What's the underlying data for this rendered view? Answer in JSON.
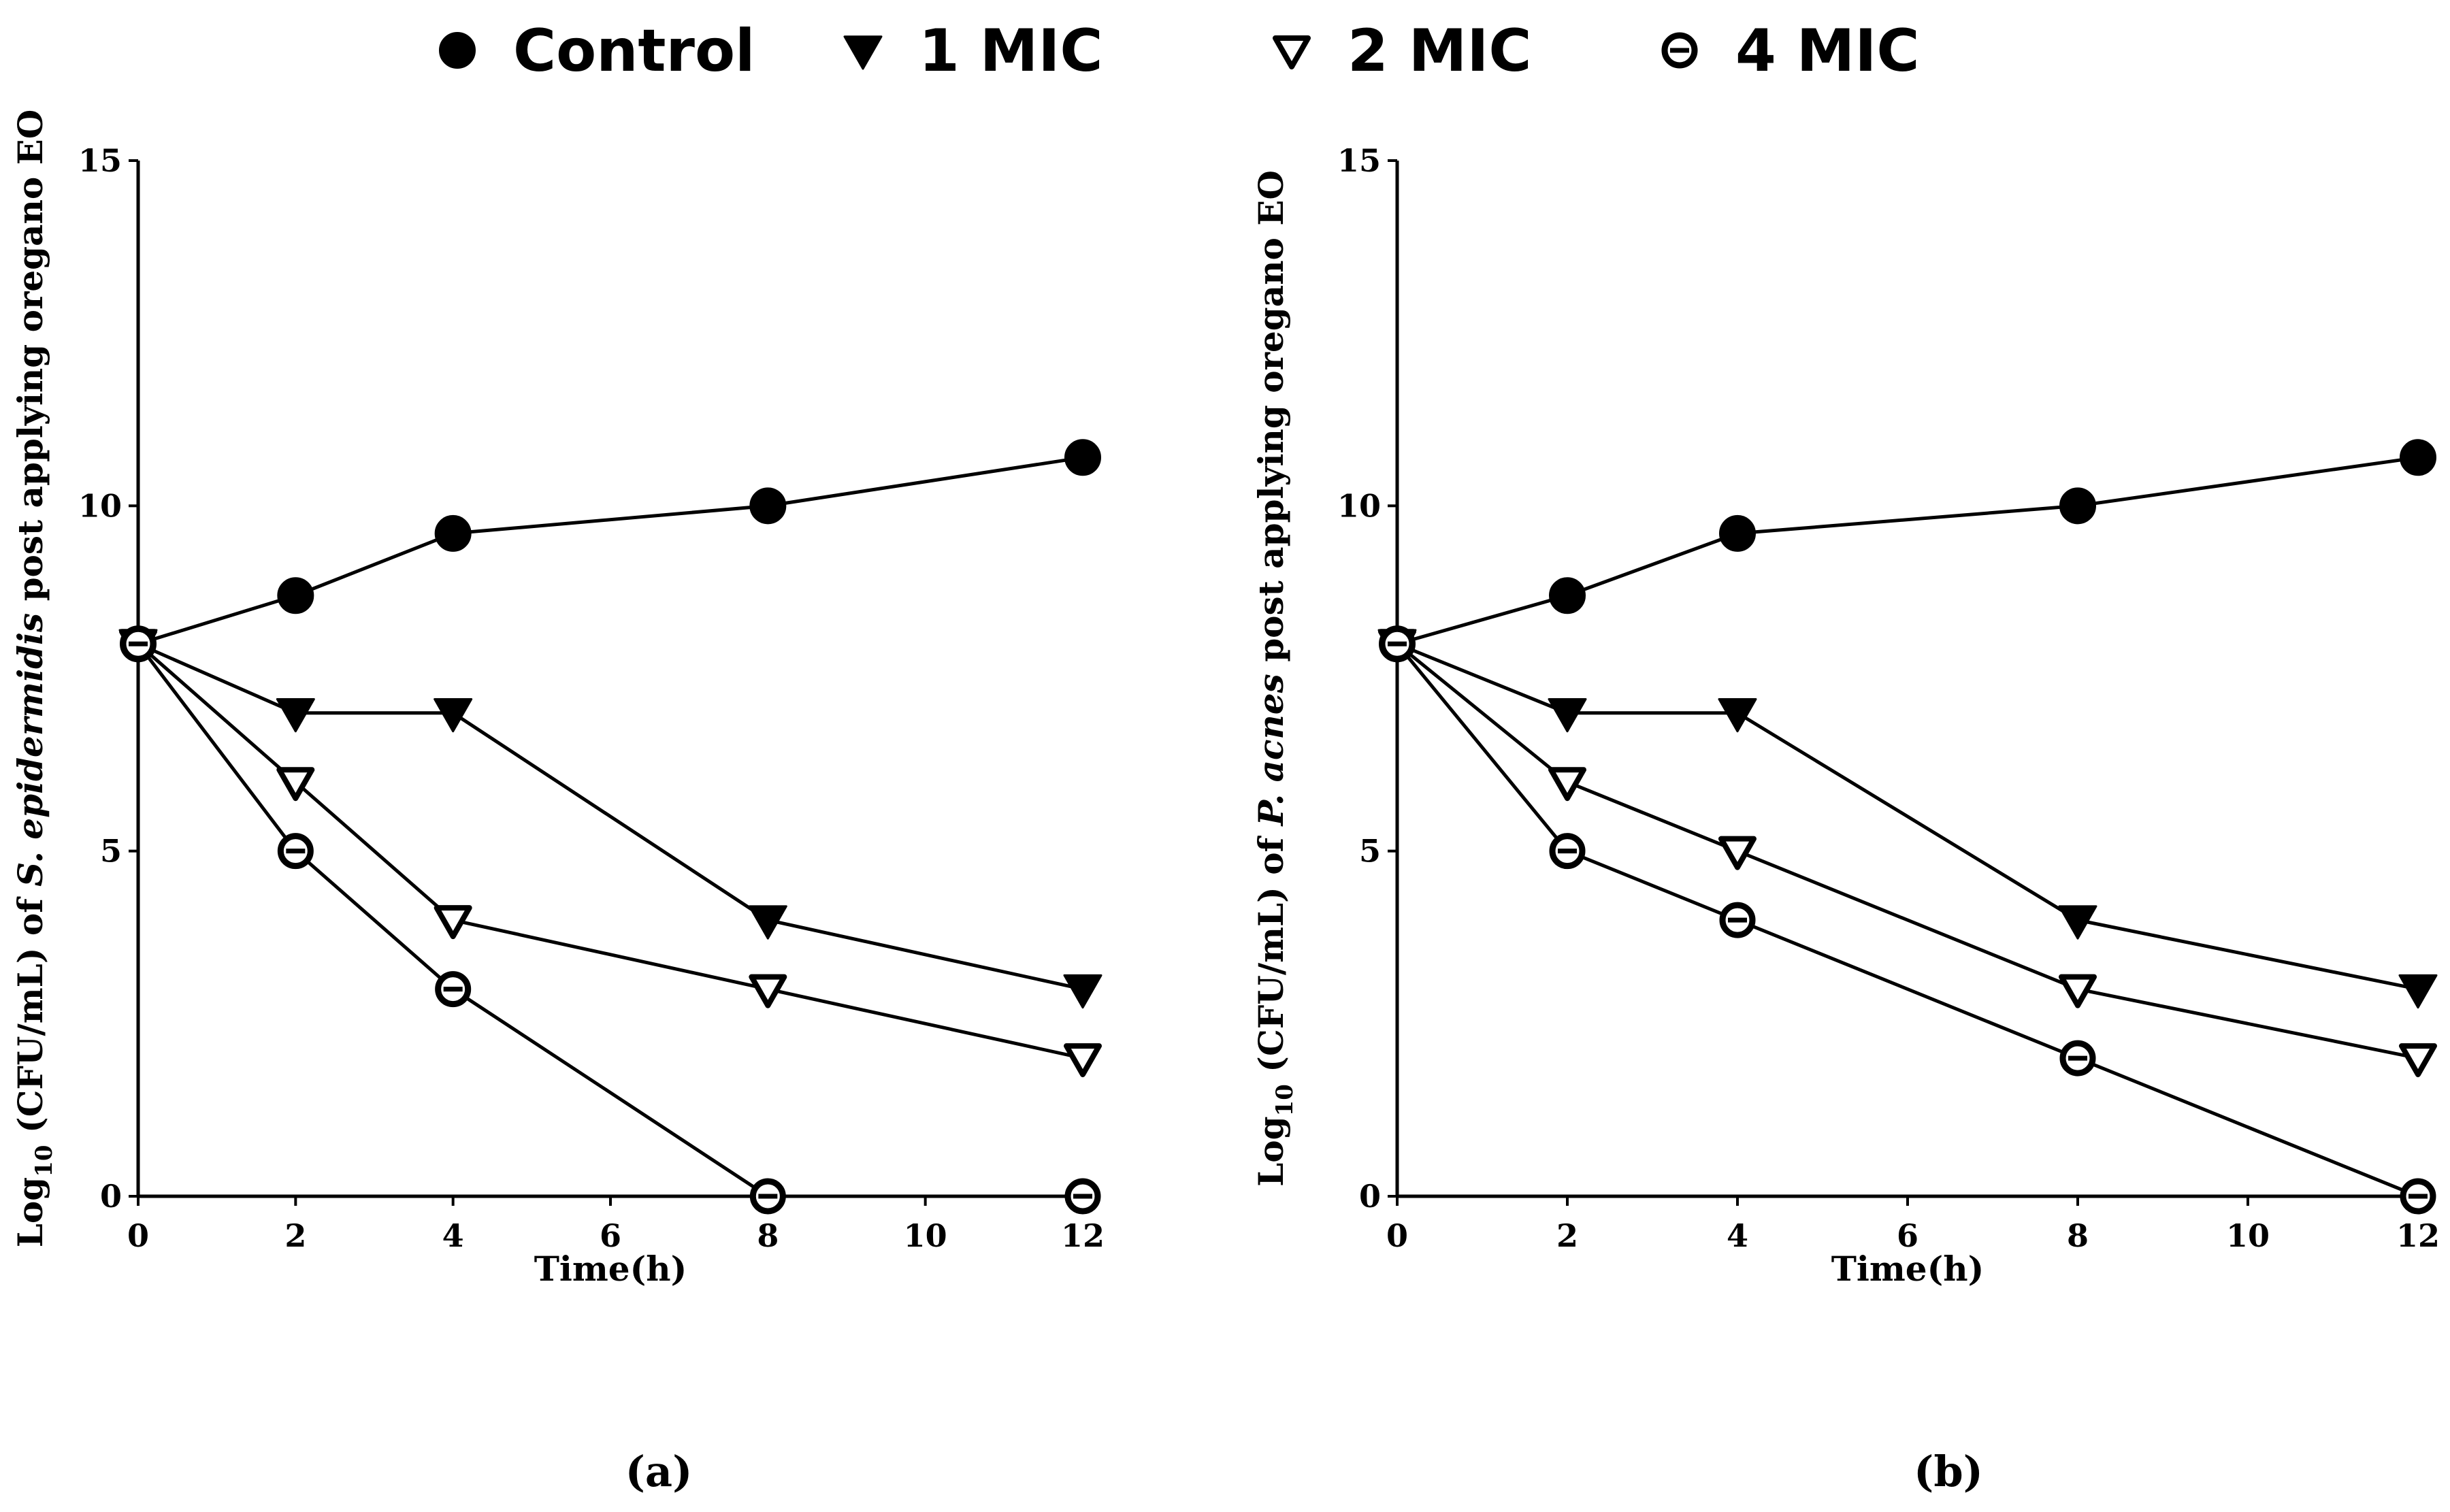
{
  "legend": [
    {
      "label": "Control",
      "marker": "filled-circle-marker"
    },
    {
      "label": "1 MIC",
      "marker": "filled-down-triangle-marker"
    },
    {
      "label": "2 MIC",
      "marker": "open-down-triangle-marker"
    },
    {
      "label": "4 MIC",
      "marker": "open-circle-marker"
    }
  ],
  "chart_data": [
    {
      "type": "line",
      "panel_label": "(a)",
      "xlabel": "Time(h)",
      "ylabel": {
        "prefix": "Log",
        "subscript": "10",
        "pre_italic": " (CFU/mL) of ",
        "italic": "S. epidermidis",
        "post_italic": " post applying oregano EO"
      },
      "xlim": [
        0,
        12
      ],
      "ylim": [
        0,
        15
      ],
      "xticks": [
        0,
        2,
        4,
        6,
        8,
        10,
        12
      ],
      "yticks": [
        0,
        5,
        10,
        15
      ],
      "series": [
        {
          "name": "Control",
          "x": [
            0,
            2,
            4,
            8,
            12
          ],
          "values": [
            8,
            8.7,
            9.6,
            10,
            10.7
          ]
        },
        {
          "name": "1 MIC",
          "x": [
            0,
            2,
            4,
            8,
            12
          ],
          "values": [
            8,
            7,
            7,
            4,
            3
          ]
        },
        {
          "name": "2 MIC",
          "x": [
            0,
            2,
            4,
            8,
            12
          ],
          "values": [
            8,
            6,
            4,
            3,
            2
          ]
        },
        {
          "name": "4 MIC",
          "x": [
            0,
            2,
            4,
            8,
            12
          ],
          "values": [
            8,
            5,
            3,
            0,
            0
          ]
        }
      ]
    },
    {
      "type": "line",
      "panel_label": "(b)",
      "xlabel": "Time(h)",
      "ylabel": {
        "prefix": "Log",
        "subscript": "10",
        "pre_italic": " (CFU/mL) of ",
        "italic": "P. acnes",
        "post_italic": " post applying oregano EO"
      },
      "xlim": [
        0,
        12
      ],
      "ylim": [
        0,
        15
      ],
      "xticks": [
        0,
        2,
        4,
        6,
        8,
        10,
        12
      ],
      "yticks": [
        0,
        5,
        10,
        15
      ],
      "series": [
        {
          "name": "Control",
          "x": [
            0,
            2,
            4,
            8,
            12
          ],
          "values": [
            8,
            8.7,
            9.6,
            10,
            10.7
          ]
        },
        {
          "name": "1 MIC",
          "x": [
            0,
            2,
            4,
            8,
            12
          ],
          "values": [
            8,
            7,
            7,
            4,
            3
          ]
        },
        {
          "name": "2 MIC",
          "x": [
            0,
            2,
            4,
            8,
            12
          ],
          "values": [
            8,
            6,
            5,
            3,
            2
          ]
        },
        {
          "name": "4 MIC",
          "x": [
            0,
            2,
            4,
            8,
            12
          ],
          "values": [
            8,
            5,
            4,
            2,
            0
          ]
        }
      ]
    }
  ]
}
